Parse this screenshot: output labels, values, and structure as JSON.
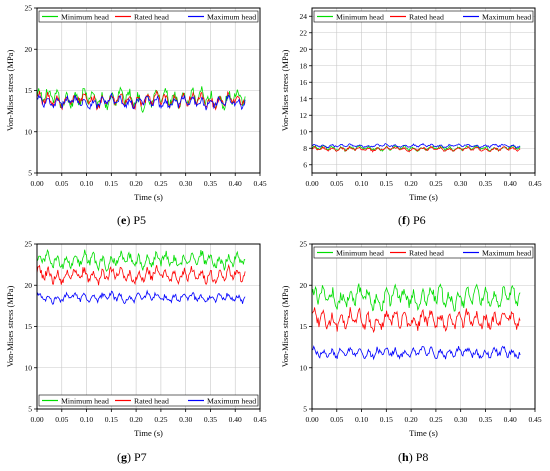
{
  "chart_data": [
    {
      "type": "line",
      "panel": "e",
      "caption_letter": "e",
      "caption_text": "P5",
      "xlabel": "Time (s)",
      "ylabel": "Von-Mises stress (MPa)",
      "xlim": [
        0.0,
        0.45
      ],
      "ylim": [
        5,
        25
      ],
      "xticks": [
        "0.00",
        "0.05",
        "0.10",
        "0.15",
        "0.20",
        "0.25",
        "0.30",
        "0.35",
        "0.40",
        "0.45"
      ],
      "yticks": [
        "5",
        "10",
        "15",
        "20",
        "25"
      ],
      "legend_position": "top",
      "grid": true,
      "series": [
        {
          "name": "Minimum head",
          "color": "#00dd00",
          "mean": 14.0,
          "amplitude": 1.4,
          "x_end": 0.42
        },
        {
          "name": "Rated head",
          "color": "#ff0000",
          "mean": 13.8,
          "amplitude": 1.1,
          "x_end": 0.42
        },
        {
          "name": "Maximum head",
          "color": "#0000ff",
          "mean": 13.6,
          "amplitude": 0.9,
          "x_end": 0.42
        }
      ]
    },
    {
      "type": "line",
      "panel": "f",
      "caption_letter": "f",
      "caption_text": "P6",
      "xlabel": "Time (s)",
      "ylabel": "Von-Mises stress (MPa)",
      "xlim": [
        0.0,
        0.45
      ],
      "ylim": [
        5,
        25
      ],
      "xticks": [
        "0.00",
        "0.05",
        "0.10",
        "0.15",
        "0.20",
        "0.25",
        "0.30",
        "0.35",
        "0.40",
        "0.45"
      ],
      "yticks": [
        "6",
        "8",
        "10",
        "12",
        "14",
        "16",
        "18",
        "20",
        "22",
        "24"
      ],
      "yticks_values": [
        6,
        8,
        10,
        12,
        14,
        16,
        18,
        20,
        22,
        24
      ],
      "legend_position": "top",
      "grid": true,
      "series": [
        {
          "name": "Minimum head",
          "color": "#00dd00",
          "mean": 8.0,
          "amplitude": 0.35,
          "x_end": 0.42
        },
        {
          "name": "Rated head",
          "color": "#ff0000",
          "mean": 7.9,
          "amplitude": 0.3,
          "x_end": 0.42
        },
        {
          "name": "Maximum head",
          "color": "#0000ff",
          "mean": 8.3,
          "amplitude": 0.25,
          "x_end": 0.42
        }
      ]
    },
    {
      "type": "line",
      "panel": "g",
      "caption_letter": "g",
      "caption_text": "P7",
      "xlabel": "Time (s)",
      "ylabel": "Von-Mises stress (MPa)",
      "xlim": [
        0.0,
        0.45
      ],
      "ylim": [
        5,
        25
      ],
      "xticks": [
        "0.00",
        "0.05",
        "0.10",
        "0.15",
        "0.20",
        "0.25",
        "0.30",
        "0.35",
        "0.40",
        "0.45"
      ],
      "yticks": [
        "5",
        "10",
        "15",
        "20",
        "25"
      ],
      "legend_position": "bottom",
      "grid": true,
      "series": [
        {
          "name": "Minimum head",
          "color": "#00dd00",
          "mean": 23.0,
          "amplitude": 1.2,
          "x_end": 0.42
        },
        {
          "name": "Rated head",
          "color": "#ff0000",
          "mean": 21.2,
          "amplitude": 1.1,
          "x_end": 0.42
        },
        {
          "name": "Maximum head",
          "color": "#0000ff",
          "mean": 18.5,
          "amplitude": 0.7,
          "x_end": 0.42
        }
      ]
    },
    {
      "type": "line",
      "panel": "h",
      "caption_letter": "h",
      "caption_text": "P8",
      "xlabel": "Time (s)",
      "ylabel": "Von-Mises stress (MPa)",
      "xlim": [
        0.0,
        0.45
      ],
      "ylim": [
        5,
        25
      ],
      "xticks": [
        "0.00",
        "0.05",
        "0.10",
        "0.15",
        "0.20",
        "0.25",
        "0.30",
        "0.35",
        "0.40",
        "0.45"
      ],
      "yticks": [
        "5",
        "10",
        "15",
        "20",
        "25"
      ],
      "legend_position": "top",
      "grid": true,
      "series": [
        {
          "name": "Minimum head",
          "color": "#00dd00",
          "mean": 18.5,
          "amplitude": 1.6,
          "x_end": 0.42
        },
        {
          "name": "Rated head",
          "color": "#ff0000",
          "mean": 15.8,
          "amplitude": 1.4,
          "x_end": 0.42
        },
        {
          "name": "Maximum head",
          "color": "#0000ff",
          "mean": 11.8,
          "amplitude": 0.8,
          "x_end": 0.42
        }
      ]
    }
  ]
}
